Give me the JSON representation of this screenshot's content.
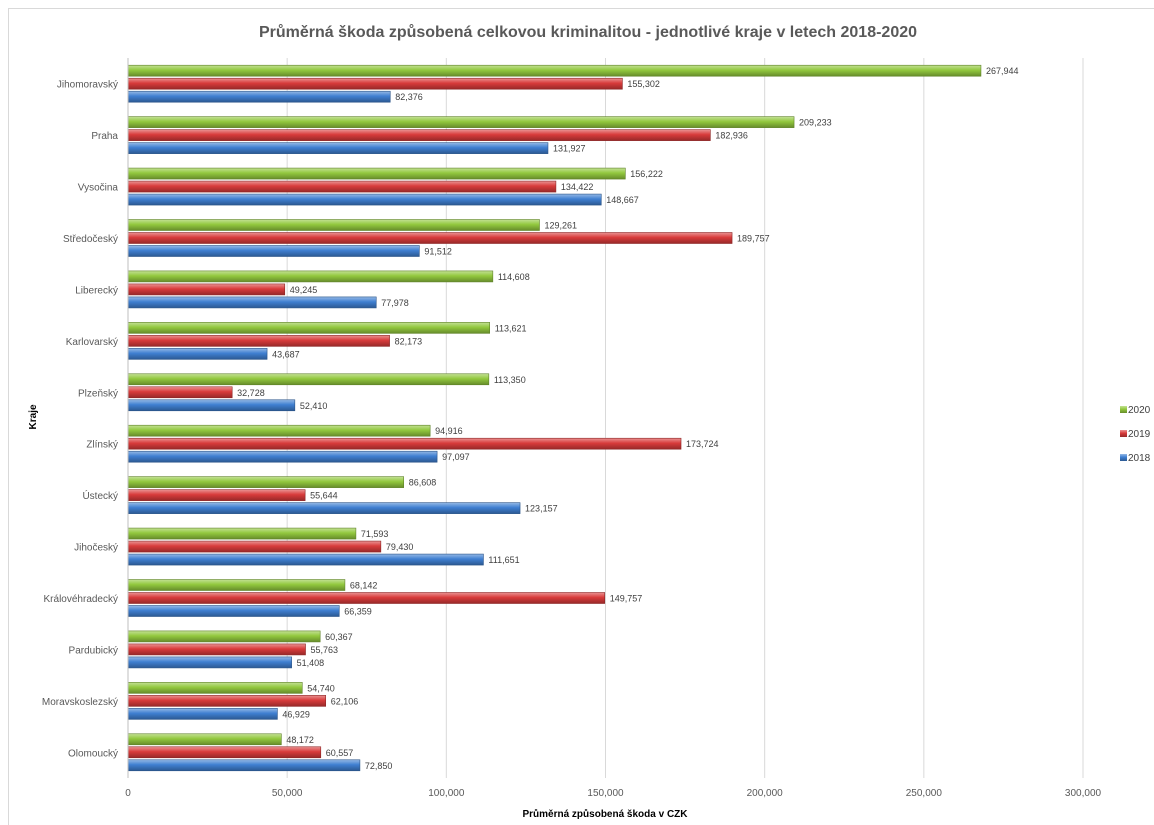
{
  "chart_data": {
    "type": "bar",
    "orientation": "horizontal",
    "title": "Průměrná škoda způsobená celkovou kriminalitou - jednotlivé kraje v letech 2018-2020",
    "xlabel": "Průměrná způsobená škoda v CZK",
    "ylabel": "Kraje",
    "xlim": [
      0,
      300000
    ],
    "xticks": [
      0,
      50000,
      100000,
      150000,
      200000,
      250000,
      300000
    ],
    "xtick_labels": [
      "0",
      "50,000",
      "100,000",
      "150,000",
      "200,000",
      "250,000",
      "300,000"
    ],
    "grid": true,
    "legend_position": "right",
    "categories": [
      "Jihomoravský",
      "Praha",
      "Vysočina",
      "Středočeský",
      "Liberecký",
      "Karlovarský",
      "Plzeňský",
      "Zlínský",
      "Ústecký",
      "Jihočeský",
      "Královéhradecký",
      "Pardubický",
      "Moravskoslezský",
      "Olomoucký"
    ],
    "series": [
      {
        "name": "2020",
        "color": "#92c83e",
        "values": [
          267944,
          209233,
          156222,
          129261,
          114608,
          113621,
          113350,
          94916,
          86608,
          71593,
          68142,
          60367,
          54740,
          48172
        ]
      },
      {
        "name": "2019",
        "color": "#d83b3b",
        "values": [
          155302,
          182936,
          134422,
          189757,
          49245,
          82173,
          32728,
          173724,
          55644,
          79430,
          149757,
          55763,
          62106,
          60557
        ]
      },
      {
        "name": "2018",
        "color": "#3f7fd1",
        "values": [
          82376,
          131927,
          148667,
          91512,
          77978,
          43687,
          52410,
          97097,
          123157,
          111651,
          66359,
          51408,
          46929,
          72850
        ]
      }
    ]
  }
}
